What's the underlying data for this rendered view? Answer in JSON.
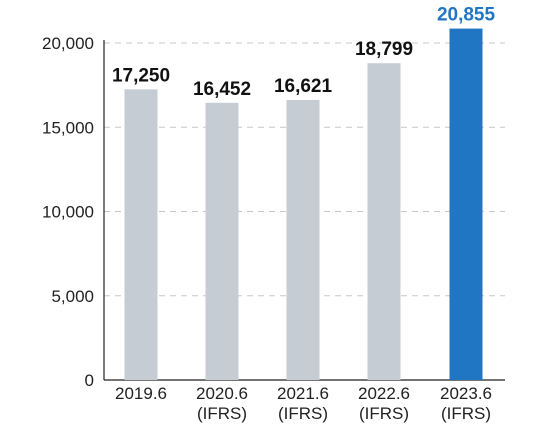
{
  "chart_data": {
    "type": "bar",
    "title": "",
    "xlabel": "",
    "ylabel": "",
    "categories": [
      [
        "2019.6"
      ],
      [
        "2020.6",
        "(IFRS)"
      ],
      [
        "2021.6",
        "(IFRS)"
      ],
      [
        "2022.6",
        "(IFRS)"
      ],
      [
        "2023.6",
        "(IFRS)"
      ]
    ],
    "values": [
      17250,
      16452,
      16621,
      18799,
      20855
    ],
    "value_labels": [
      "17,250",
      "16,452",
      "16,621",
      "18,799",
      "20,855"
    ],
    "ylim": [
      0,
      20000
    ],
    "yticks": [
      0,
      5000,
      10000,
      15000,
      20000
    ],
    "ytick_labels": [
      "0",
      "5,000",
      "10,000",
      "15,000",
      "20,000"
    ],
    "grid": true,
    "legend": "none",
    "colors": {
      "default_bar": "#c5ccd4",
      "highlight_bar": "#2176c3",
      "default_label": "#111111",
      "highlight_label": "#2176c3"
    },
    "highlight_index": 4
  }
}
